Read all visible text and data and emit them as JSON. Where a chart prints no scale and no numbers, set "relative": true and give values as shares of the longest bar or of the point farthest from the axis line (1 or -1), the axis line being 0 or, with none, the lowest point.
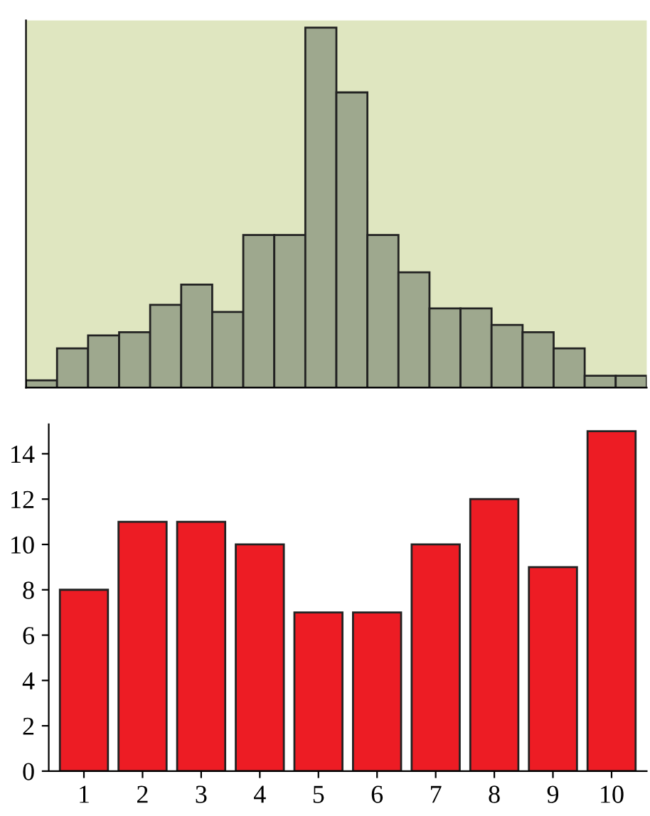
{
  "chart_data": [
    {
      "type": "bar",
      "relative": true,
      "categories": [
        null,
        null,
        null,
        null,
        null,
        null,
        null,
        null,
        null,
        null,
        null,
        null,
        null,
        null,
        null,
        null,
        null,
        null,
        null,
        null
      ],
      "values": [
        0.02,
        0.109,
        0.145,
        0.154,
        0.23,
        0.286,
        0.21,
        0.424,
        0.424,
        1,
        0.82,
        0.424,
        0.32,
        0.22,
        0.22,
        0.174,
        0.154,
        0.109,
        0.033,
        0.033
      ],
      "color": "#9ea88e",
      "grid": false
    },
    {
      "type": "bar",
      "categories": [
        "1",
        "2",
        "3",
        "4",
        "5",
        "6",
        "7",
        "8",
        "9",
        "10"
      ],
      "values": [
        8,
        11,
        11,
        10,
        7,
        7,
        10,
        12,
        9,
        15
      ],
      "color": "#ed1c24",
      "ylim": [
        0,
        15.3
      ],
      "yticks": [
        0,
        2,
        4,
        6,
        8,
        10,
        12,
        14
      ],
      "grid": false
    }
  ]
}
